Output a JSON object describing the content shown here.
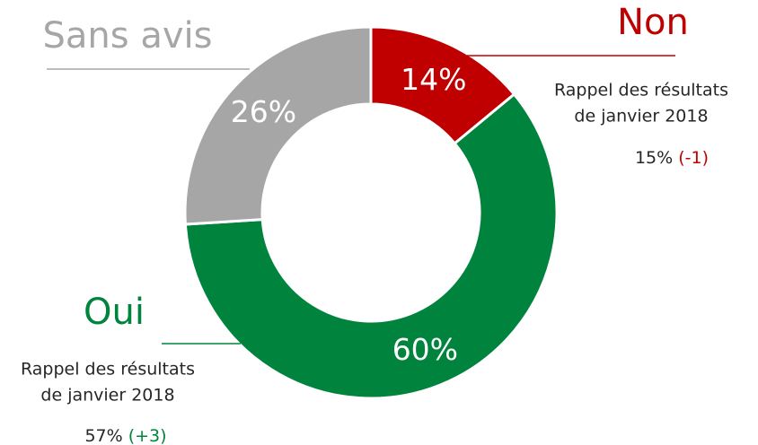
{
  "chart_data": {
    "type": "donut",
    "categories": [
      "Non",
      "Oui",
      "Sans avis"
    ],
    "values": [
      14,
      60,
      26
    ],
    "value_labels": [
      "14%",
      "60%",
      "26%"
    ],
    "colors": [
      "#c00000",
      "#00843d",
      "#a6a6a6"
    ],
    "annotations": [
      {
        "category": "Non",
        "lines": [
          "Rappel des résultats",
          "de janvier 2018"
        ],
        "previous": {
          "value": 15,
          "label": "15%"
        },
        "change": {
          "value": -1,
          "label": "(-1)"
        }
      },
      {
        "category": "Oui",
        "lines": [
          "Rappel des résultats",
          "de janvier 2018"
        ],
        "previous": {
          "value": 57,
          "label": "57%"
        },
        "change": {
          "value": 3,
          "label": "(+3)"
        }
      }
    ]
  }
}
